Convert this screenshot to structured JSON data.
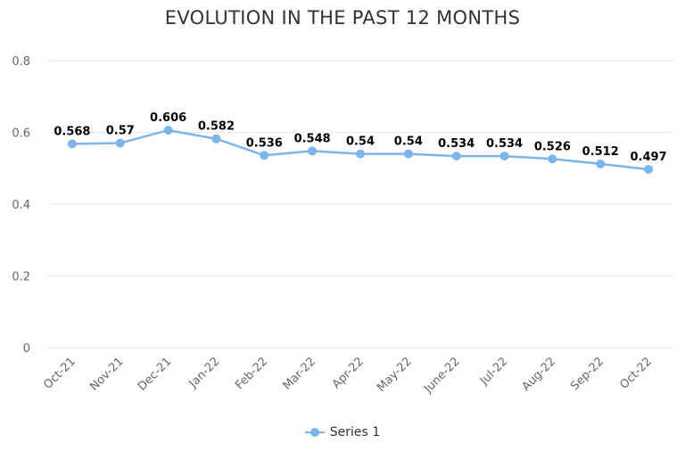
{
  "chart_data": {
    "type": "line",
    "title": "EVOLUTION IN THE PAST 12 MONTHS",
    "categories": [
      "Oct-21",
      "Nov-21",
      "Dec-21",
      "Jan-22",
      "Feb-22",
      "Mar-22",
      "Apr-22",
      "May-22",
      "June-22",
      "Jul-22",
      "Aug-22",
      "Sep-22",
      "Oct-22"
    ],
    "series": [
      {
        "name": "Series 1",
        "values": [
          0.568,
          0.57,
          0.606,
          0.582,
          0.536,
          0.548,
          0.54,
          0.54,
          0.534,
          0.534,
          0.526,
          0.512,
          0.497
        ]
      }
    ],
    "data_labels": [
      "0.568",
      "0.57",
      "0.606",
      "0.582",
      "0.536",
      "0.548",
      "0.54",
      "0.54",
      "0.534",
      "0.534",
      "0.526",
      "0.512",
      "0.497"
    ],
    "ylim": [
      0,
      0.8
    ],
    "yticks": [
      "0",
      "0.2",
      "0.4",
      "0.6",
      "0.8"
    ],
    "grid": true,
    "legend_position": "bottom-center",
    "colors": {
      "series": "#7cb5ec",
      "grid": "#e6e6e6",
      "text": "#333333",
      "tick_text": "#666666"
    }
  }
}
